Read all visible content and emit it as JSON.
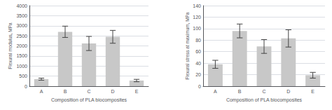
{
  "chart_data": [
    {
      "type": "bar",
      "categories": [
        "A",
        "B",
        "C",
        "D",
        "E"
      ],
      "values": [
        350,
        2700,
        2120,
        2450,
        280
      ],
      "errors": [
        50,
        280,
        350,
        320,
        60
      ],
      "ylabel": "Flexural modulus, MPa",
      "xlabel": "Composition of PLA biocomposites",
      "ylim": [
        0,
        4000
      ],
      "yticks": [
        0,
        500,
        1000,
        1500,
        2000,
        2500,
        3000,
        3500,
        4000
      ],
      "color": "#c8c8c8",
      "grid": true
    },
    {
      "type": "bar",
      "categories": [
        "A",
        "B",
        "C",
        "D",
        "E"
      ],
      "values": [
        38,
        96,
        69,
        83,
        19
      ],
      "errors": [
        7,
        12,
        12,
        15,
        5
      ],
      "ylabel": "Flexural stress at maximum, MPa",
      "xlabel": "Composition of PLA biocomposites",
      "ylim": [
        0,
        140
      ],
      "yticks": [
        0,
        20,
        40,
        60,
        80,
        100,
        120,
        140
      ],
      "color": "#c8c8c8",
      "grid": true
    }
  ]
}
